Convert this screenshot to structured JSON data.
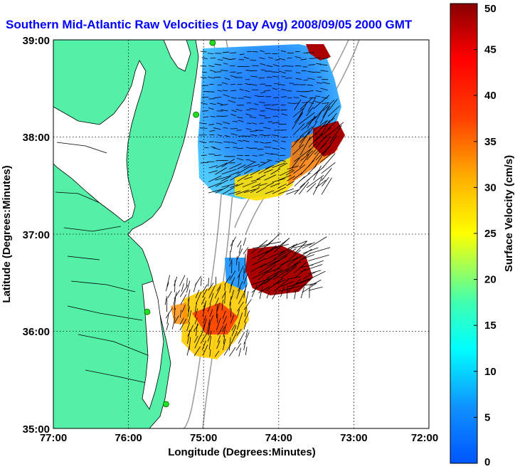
{
  "title": "Southern Mid-Atlantic Raw Velocities (1 Day Avg) 2008/09/05 2000 GMT",
  "xlabel": "Longitude (Degrees:Minutes)",
  "ylabel": "Latitude (Degrees:Minutes)",
  "colorbar_label": "Surface Velocity (cm/s)",
  "x_ticks": [
    "77:00",
    "76:00",
    "75:00",
    "74:00",
    "73:00",
    "72:00"
  ],
  "y_ticks": [
    "39:00",
    "38:00",
    "37:00",
    "36:00",
    "35:00"
  ],
  "colorbar_ticks": [
    "0",
    "5",
    "10",
    "15",
    "20",
    "25",
    "30",
    "35",
    "40",
    "45",
    "50"
  ],
  "colors": {
    "title": "#0000ff",
    "land": "#55f0a8",
    "coastline": "#000000",
    "bathymetry": "#9a9a9a",
    "station": "#22dd22"
  },
  "chart_data": {
    "type": "map-heatmap",
    "x_range_deg": [
      -77,
      -72
    ],
    "y_range_deg": [
      35,
      39
    ],
    "colorbar_range": [
      0,
      50
    ],
    "colorbar_units": "cm/s",
    "grid": "dotted",
    "stations": [
      {
        "lon": -74.88,
        "lat": 38.97
      },
      {
        "lon": -75.1,
        "lat": 38.23
      },
      {
        "lon": -75.75,
        "lat": 36.2
      },
      {
        "lon": -75.5,
        "lat": 35.25
      }
    ]
  }
}
